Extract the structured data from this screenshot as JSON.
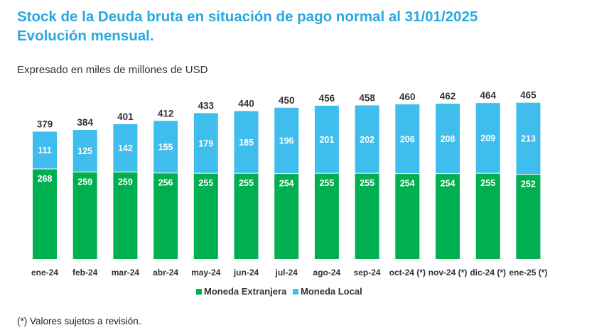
{
  "header": {
    "title_line1": "Stock de la Deuda bruta en situación de pago normal al 31/01/2025",
    "title_line2": "Evolución mensual."
  },
  "subtitle": "Expresado en miles de millones de USD",
  "footnote": "(*) Valores sujetos a revisión.",
  "colors": {
    "title": "#29a8e0",
    "moneda_extranjera": "#00b050",
    "moneda_local": "#3fbdec"
  },
  "chart_data": {
    "type": "bar",
    "stacked": true,
    "title": "Stock de la Deuda bruta en situación de pago normal al 31/01/2025 Evolución mensual.",
    "ylabel": "Expresado en miles de millones de USD",
    "xlabel": "",
    "categories": [
      "ene-24",
      "feb-24",
      "mar-24",
      "abr-24",
      "may-24",
      "jun-24",
      "jul-24",
      "ago-24",
      "sep-24",
      "oct-24 (*)",
      "nov-24 (*)",
      "dic-24 (*)",
      "ene-25 (*)"
    ],
    "series": [
      {
        "name": "Moneda Extranjera",
        "values": [
          268,
          259,
          259,
          256,
          255,
          255,
          254,
          255,
          255,
          254,
          254,
          255,
          252
        ]
      },
      {
        "name": "Moneda Local",
        "values": [
          111,
          125,
          142,
          155,
          179,
          185,
          196,
          201,
          202,
          206,
          208,
          209,
          213
        ]
      }
    ],
    "totals": [
      379,
      384,
      401,
      412,
      433,
      440,
      450,
      456,
      458,
      460,
      462,
      464,
      465
    ],
    "ylim": [
      0,
      500
    ],
    "grid": false,
    "legend": "bottom-center"
  }
}
